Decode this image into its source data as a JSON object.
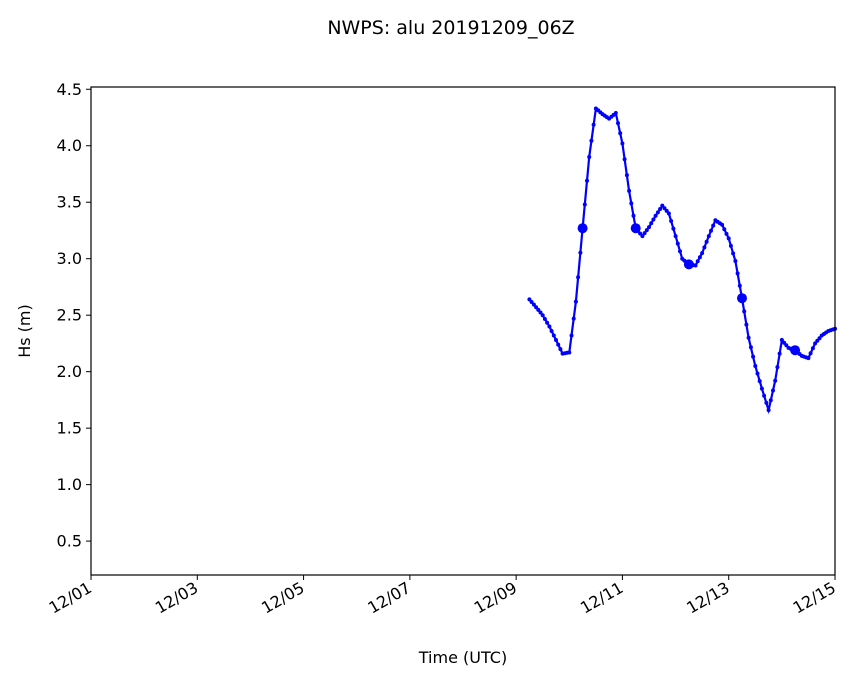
{
  "chart_data": {
    "type": "line",
    "title": "NWPS: alu 20191209_06Z",
    "xlabel": "Time (UTC)",
    "ylabel": "Hs (m)",
    "x_ticks": [
      "12/01",
      "12/03",
      "12/05",
      "12/07",
      "12/09",
      "12/11",
      "12/13",
      "12/15"
    ],
    "y_ticks": [
      "0.5",
      "1.0",
      "1.5",
      "2.0",
      "2.5",
      "3.0",
      "3.5",
      "4.0",
      "4.5"
    ],
    "xlim": [
      "2019-12-01 00:00",
      "2019-12-15 00:00"
    ],
    "ylim": [
      0.2,
      4.52
    ],
    "grid": false,
    "series": [
      {
        "color": "#0000ff",
        "x": [
          "2019-12-09 06:00",
          "2019-12-09 09:00",
          "2019-12-09 12:00",
          "2019-12-09 15:00",
          "2019-12-09 18:00",
          "2019-12-09 21:00",
          "2019-12-10 00:00",
          "2019-12-10 03:00",
          "2019-12-10 06:00",
          "2019-12-10 09:00",
          "2019-12-10 12:00",
          "2019-12-10 15:00",
          "2019-12-10 18:00",
          "2019-12-10 21:00",
          "2019-12-11 00:00",
          "2019-12-11 03:00",
          "2019-12-11 06:00",
          "2019-12-11 09:00",
          "2019-12-11 12:00",
          "2019-12-11 15:00",
          "2019-12-11 18:00",
          "2019-12-11 21:00",
          "2019-12-12 00:00",
          "2019-12-12 03:00",
          "2019-12-12 06:00",
          "2019-12-12 09:00",
          "2019-12-12 12:00",
          "2019-12-12 15:00",
          "2019-12-12 18:00",
          "2019-12-12 21:00",
          "2019-12-13 00:00",
          "2019-12-13 03:00",
          "2019-12-13 06:00",
          "2019-12-13 09:00",
          "2019-12-13 12:00",
          "2019-12-13 15:00",
          "2019-12-13 18:00",
          "2019-12-13 21:00",
          "2019-12-14 00:00",
          "2019-12-14 03:00",
          "2019-12-14 06:00",
          "2019-12-14 09:00",
          "2019-12-14 12:00",
          "2019-12-14 15:00",
          "2019-12-14 18:00",
          "2019-12-14 21:00",
          "2019-12-15 00:00"
        ],
        "y": [
          2.64,
          2.57,
          2.5,
          2.4,
          2.28,
          2.16,
          2.17,
          2.62,
          3.27,
          3.9,
          4.33,
          4.28,
          4.24,
          4.29,
          4.02,
          3.6,
          3.27,
          3.2,
          3.28,
          3.38,
          3.47,
          3.4,
          3.2,
          3.0,
          2.95,
          2.94,
          3.05,
          3.2,
          3.34,
          3.3,
          3.18,
          2.98,
          2.65,
          2.3,
          2.05,
          1.85,
          1.66,
          1.92,
          2.28,
          2.21,
          2.19,
          2.14,
          2.12,
          2.25,
          2.32,
          2.36,
          2.38
        ],
        "markers_large_at": [
          "2019-12-10 06:00",
          "2019-12-11 06:00",
          "2019-12-12 06:00",
          "2019-12-13 06:00",
          "2019-12-14 06:00"
        ]
      }
    ]
  }
}
